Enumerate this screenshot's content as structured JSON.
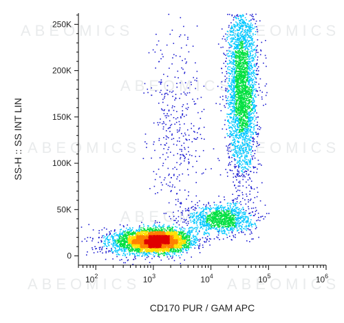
{
  "watermark": "ABEOMICS",
  "chart_data": {
    "type": "scatter",
    "style": "flow-cytometry density dot plot",
    "xlabel": "CD170 PUR / GAM APC",
    "ylabel": "SS-H :: SS INT LIN",
    "xscale": "log",
    "xlim": [
      50,
      1000000
    ],
    "ylim": [
      -10000,
      262144
    ],
    "x_ticks": [
      {
        "value": 100,
        "base": "10",
        "exp": "2"
      },
      {
        "value": 1000,
        "base": "10",
        "exp": "3"
      },
      {
        "value": 10000,
        "base": "10",
        "exp": "4"
      },
      {
        "value": 100000,
        "base": "10",
        "exp": "5"
      },
      {
        "value": 1000000,
        "base": "10",
        "exp": "6"
      }
    ],
    "y_ticks": [
      {
        "value": 0,
        "label": "0"
      },
      {
        "value": 50000,
        "label": "50K"
      },
      {
        "value": 100000,
        "label": "100K"
      },
      {
        "value": 150000,
        "label": "150K"
      },
      {
        "value": 200000,
        "label": "200K"
      },
      {
        "value": 250000,
        "label": "250K"
      }
    ],
    "colormap": [
      "#1a1ad0",
      "#00c8ff",
      "#00e040",
      "#ffe000",
      "#ff8000",
      "#e00000"
    ],
    "populations": [
      {
        "center_x": 1200,
        "center_y": 16000,
        "spread_log_x": 0.28,
        "spread_y": 6000,
        "count": 4200
      },
      {
        "center_x": 15000,
        "center_y": 40000,
        "spread_log_x": 0.28,
        "spread_y": 8000,
        "count": 1200
      },
      {
        "center_x": 35000,
        "center_y": 180000,
        "spread_log_x": 0.13,
        "spread_y": 48000,
        "count": 3200
      },
      {
        "center_x": 2500,
        "center_y": 140000,
        "spread_log_x": 0.25,
        "spread_y": 55000,
        "count": 380
      },
      {
        "center_x": 400,
        "center_y": 15000,
        "spread_log_x": 0.3,
        "spread_y": 8000,
        "count": 600
      }
    ]
  }
}
